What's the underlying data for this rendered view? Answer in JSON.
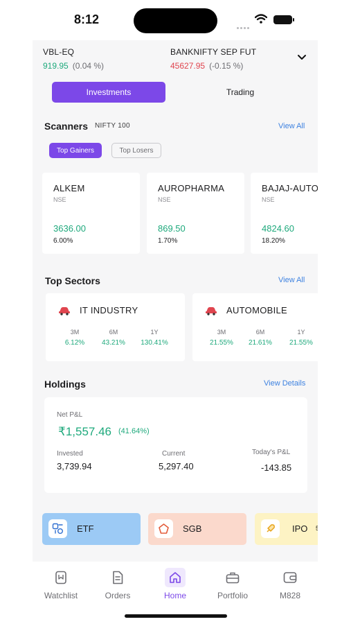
{
  "status_bar": {
    "time": "8:12"
  },
  "ticker": [
    {
      "name": "VBL-EQ",
      "price": "919.95",
      "change": "(0.04 %)",
      "direction": "up"
    },
    {
      "name": "BANKNIFTY SEP FUT",
      "price": "45627.95",
      "change": "(-0.15 %)",
      "direction": "down"
    }
  ],
  "segment": {
    "active": "Investments",
    "inactive": "Trading"
  },
  "scanners": {
    "title": "Scanners",
    "index": "NIFTY 100",
    "view_all": "View All",
    "filters": {
      "active": "Top Gainers",
      "inactive": "Top Losers"
    },
    "cards": [
      {
        "name": "ALKEM",
        "exchange": "NSE",
        "price": "3636.00",
        "change": "6.00%"
      },
      {
        "name": "AUROPHARMA",
        "exchange": "NSE",
        "price": "869.50",
        "change": "1.70%"
      },
      {
        "name": "BAJAJ-AUTO",
        "exchange": "NSE",
        "price": "4824.60",
        "change": "18.20%"
      }
    ]
  },
  "sectors": {
    "title": "Top Sectors",
    "view_all": "View All",
    "cards": [
      {
        "name": "IT INDUSTRY",
        "icon": "car-icon",
        "periods": [
          "3M",
          "6M",
          "1Y"
        ],
        "values": [
          "6.12%",
          "43.21%",
          "130.41%"
        ]
      },
      {
        "name": "AUTOMOBILE",
        "icon": "car-icon",
        "periods": [
          "3M",
          "6M",
          "1Y"
        ],
        "values": [
          "21.55%",
          "21.61%",
          "21.55%"
        ]
      }
    ]
  },
  "holdings": {
    "title": "Holdings",
    "view_details": "View Details",
    "net_pnl_label": "Net P&L",
    "net_pnl": "₹1,557.46",
    "net_pnl_pct": "(41.64%)",
    "invested_label": "Invested",
    "invested": "3,739.94",
    "current_label": "Current",
    "current": "5,297.40",
    "todays_label": "Today's P&L",
    "todays": "-143.85"
  },
  "products": [
    {
      "label": "ETF",
      "icon": "etf-icon",
      "color": "#9ccaf5"
    },
    {
      "label": "SGB",
      "icon": "pentagon-icon",
      "color": "#fbd9cc"
    },
    {
      "label": "IPO",
      "icon": "rocket-icon",
      "color": "#fdf3c4"
    }
  ],
  "products_overflow": "5",
  "tabs": [
    {
      "label": "Watchlist",
      "icon": "bookmark-icon"
    },
    {
      "label": "Orders",
      "icon": "document-icon"
    },
    {
      "label": "Home",
      "icon": "home-icon",
      "active": true
    },
    {
      "label": "Portfolio",
      "icon": "briefcase-icon"
    },
    {
      "label": "M828",
      "icon": "wallet-icon"
    }
  ],
  "colors": {
    "accent": "#7c48e8",
    "gain": "#1ea97c",
    "loss": "#e0454f",
    "link": "#3e82e0"
  }
}
